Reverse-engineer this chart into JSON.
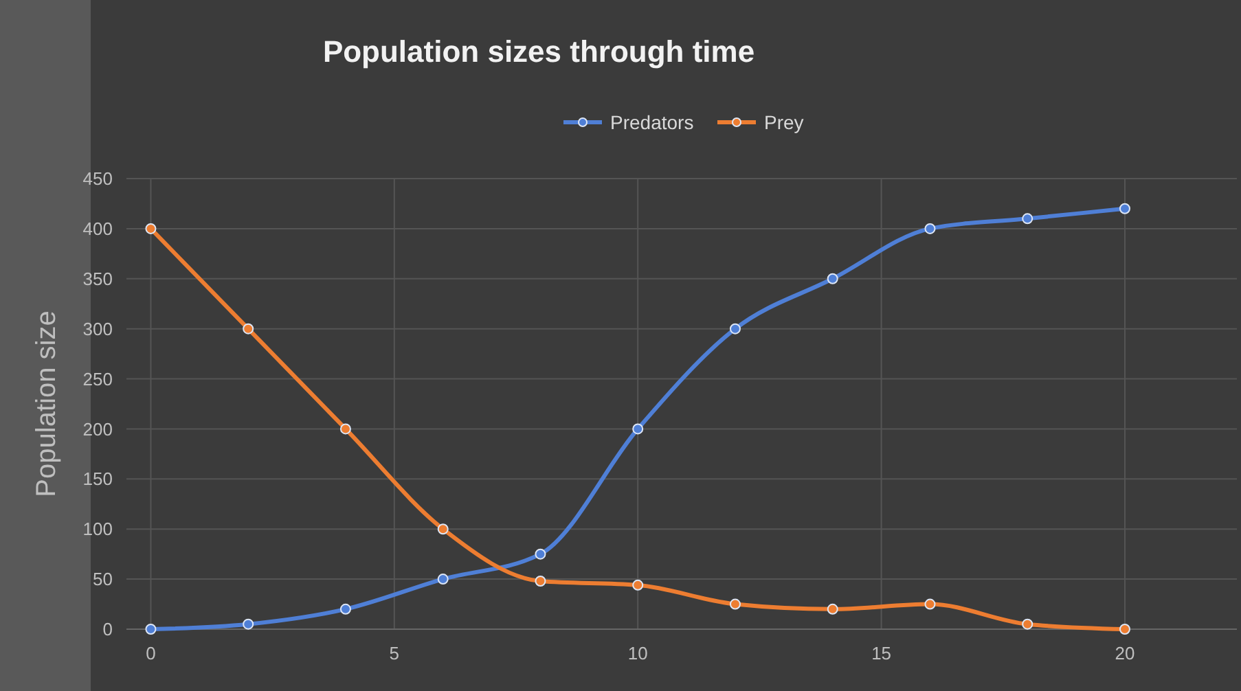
{
  "chart_data": {
    "type": "line",
    "title": "Population sizes through time",
    "ylabel": "Population size",
    "x": [
      0,
      2,
      4,
      6,
      8,
      10,
      12,
      14,
      16,
      18,
      20
    ],
    "series": [
      {
        "name": "Predators",
        "color": "#4f7fd6",
        "values": [
          0,
          5,
          20,
          50,
          75,
          200,
          300,
          350,
          400,
          410,
          420
        ]
      },
      {
        "name": "Prey",
        "color": "#ed7d31",
        "values": [
          400,
          300,
          200,
          100,
          48,
          44,
          25,
          20,
          25,
          5,
          0
        ]
      }
    ],
    "xlim": [
      -0.5,
      22.3
    ],
    "xticks": [
      0,
      5,
      10,
      15,
      20
    ],
    "ylim": [
      0,
      450
    ],
    "yticks": [
      0,
      50,
      100,
      150,
      200,
      250,
      300,
      350,
      400,
      450
    ],
    "grid": true,
    "legend": "top",
    "marker": "circle",
    "line_style": "solid"
  }
}
